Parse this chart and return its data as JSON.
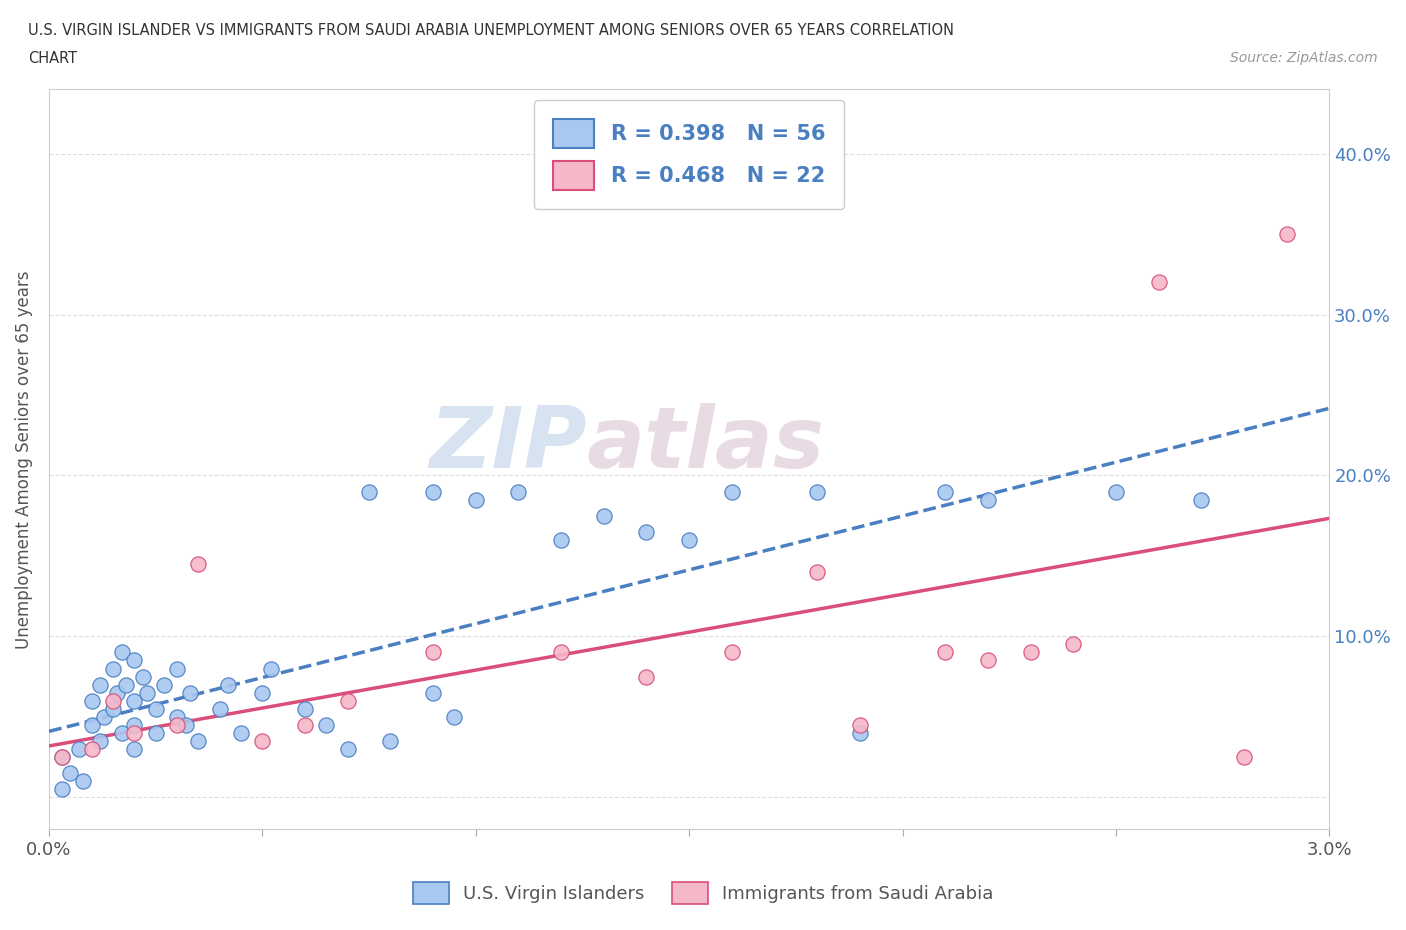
{
  "title_line1": "U.S. VIRGIN ISLANDER VS IMMIGRANTS FROM SAUDI ARABIA UNEMPLOYMENT AMONG SENIORS OVER 65 YEARS CORRELATION",
  "title_line2": "CHART",
  "source_text": "Source: ZipAtlas.com",
  "ylabel": "Unemployment Among Seniors over 65 years",
  "xlim": [
    0.0,
    0.03
  ],
  "ylim": [
    -0.02,
    0.44
  ],
  "xticks": [
    0.0,
    0.005,
    0.01,
    0.015,
    0.02,
    0.025,
    0.03
  ],
  "xticklabels": [
    "0.0%",
    "",
    "",
    "",
    "",
    "",
    "3.0%"
  ],
  "yticks": [
    0.0,
    0.1,
    0.2,
    0.3,
    0.4
  ],
  "yticklabels": [
    "",
    "10.0%",
    "20.0%",
    "30.0%",
    "40.0%"
  ],
  "blue_color": "#a8c8f0",
  "pink_color": "#f5b8c8",
  "blue_line_color": "#4a7fc1",
  "pink_line_color": "#d94f7a",
  "legend_text_color": "#4a7fc1",
  "R_blue": 0.398,
  "N_blue": 56,
  "R_pink": 0.468,
  "N_pink": 22,
  "watermark_zip": "ZIP",
  "watermark_atlas": "atlas",
  "grid_color": "#dddddd",
  "blue_scatter_x": [
    0.0003,
    0.0003,
    0.0005,
    0.0007,
    0.0008,
    0.001,
    0.001,
    0.0012,
    0.0012,
    0.0013,
    0.0015,
    0.0015,
    0.0016,
    0.0017,
    0.0017,
    0.0018,
    0.002,
    0.002,
    0.002,
    0.002,
    0.0022,
    0.0023,
    0.0025,
    0.0025,
    0.0027,
    0.003,
    0.003,
    0.0032,
    0.0033,
    0.0035,
    0.004,
    0.0042,
    0.0045,
    0.005,
    0.0052,
    0.006,
    0.0065,
    0.007,
    0.0075,
    0.008,
    0.009,
    0.009,
    0.0095,
    0.01,
    0.011,
    0.012,
    0.013,
    0.014,
    0.015,
    0.016,
    0.018,
    0.019,
    0.021,
    0.022,
    0.025,
    0.027
  ],
  "blue_scatter_y": [
    0.005,
    0.025,
    0.015,
    0.03,
    0.01,
    0.045,
    0.06,
    0.035,
    0.07,
    0.05,
    0.055,
    0.08,
    0.065,
    0.04,
    0.09,
    0.07,
    0.06,
    0.085,
    0.045,
    0.03,
    0.075,
    0.065,
    0.055,
    0.04,
    0.07,
    0.05,
    0.08,
    0.045,
    0.065,
    0.035,
    0.055,
    0.07,
    0.04,
    0.065,
    0.08,
    0.055,
    0.045,
    0.03,
    0.19,
    0.035,
    0.065,
    0.19,
    0.05,
    0.185,
    0.19,
    0.16,
    0.175,
    0.165,
    0.16,
    0.19,
    0.19,
    0.04,
    0.19,
    0.185,
    0.19,
    0.185
  ],
  "pink_scatter_x": [
    0.0003,
    0.001,
    0.0015,
    0.002,
    0.003,
    0.0035,
    0.005,
    0.006,
    0.007,
    0.009,
    0.012,
    0.014,
    0.016,
    0.018,
    0.019,
    0.021,
    0.022,
    0.023,
    0.024,
    0.026,
    0.028,
    0.029
  ],
  "pink_scatter_y": [
    0.025,
    0.03,
    0.06,
    0.04,
    0.045,
    0.145,
    0.035,
    0.045,
    0.06,
    0.09,
    0.09,
    0.075,
    0.09,
    0.14,
    0.045,
    0.09,
    0.085,
    0.09,
    0.095,
    0.32,
    0.025,
    0.35
  ]
}
